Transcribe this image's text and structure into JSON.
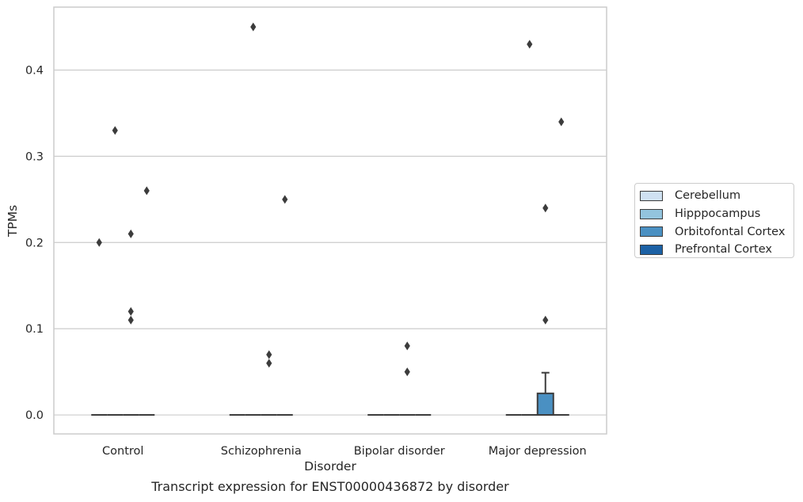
{
  "chart_data": {
    "type": "box",
    "title": "",
    "caption": "Transcript expression for ENST00000436872 by disorder",
    "xlabel": "Disorder",
    "ylabel": "TPMs",
    "categories": [
      "Control",
      "Schizophrenia",
      "Bipolar disorder",
      "Major depression"
    ],
    "ylim": [
      -0.022,
      0.473
    ],
    "yticks": [
      0.0,
      0.1,
      0.2,
      0.3,
      0.4
    ],
    "ytick_labels": [
      "0.0",
      "0.1",
      "0.2",
      "0.3",
      "0.4"
    ],
    "grid": "horizontal",
    "legend_position": "right",
    "series": [
      {
        "name": "Cerebellum",
        "color": "#cfe1f2",
        "boxes": [
          {
            "category": "Control",
            "q1": 0,
            "median": 0,
            "q3": 0,
            "whisker_low": 0,
            "whisker_high": 0,
            "outliers": [
              0.2
            ]
          },
          {
            "category": "Schizophrenia",
            "q1": 0,
            "median": 0,
            "q3": 0,
            "whisker_low": 0,
            "whisker_high": 0,
            "outliers": []
          },
          {
            "category": "Bipolar disorder",
            "q1": 0,
            "median": 0,
            "q3": 0,
            "whisker_low": 0,
            "whisker_high": 0,
            "outliers": []
          },
          {
            "category": "Major depression",
            "q1": 0,
            "median": 0,
            "q3": 0,
            "whisker_low": 0,
            "whisker_high": 0,
            "outliers": []
          }
        ]
      },
      {
        "name": "Hipppocampus",
        "color": "#93c4de",
        "boxes": [
          {
            "category": "Control",
            "q1": 0,
            "median": 0,
            "q3": 0,
            "whisker_low": 0,
            "whisker_high": 0,
            "outliers": [
              0.33
            ]
          },
          {
            "category": "Schizophrenia",
            "q1": 0,
            "median": 0,
            "q3": 0,
            "whisker_low": 0,
            "whisker_high": 0,
            "outliers": [
              0.45
            ]
          },
          {
            "category": "Bipolar disorder",
            "q1": 0,
            "median": 0,
            "q3": 0,
            "whisker_low": 0,
            "whisker_high": 0,
            "outliers": []
          },
          {
            "category": "Major depression",
            "q1": 0,
            "median": 0,
            "q3": 0,
            "whisker_low": 0,
            "whisker_high": 0,
            "outliers": [
              0.43
            ]
          }
        ]
      },
      {
        "name": "Orbitofontal Cortex",
        "color": "#4a90c2",
        "boxes": [
          {
            "category": "Control",
            "q1": 0,
            "median": 0,
            "q3": 0,
            "whisker_low": 0,
            "whisker_high": 0,
            "outliers": [
              0.21,
              0.12,
              0.11
            ]
          },
          {
            "category": "Schizophrenia",
            "q1": 0,
            "median": 0,
            "q3": 0,
            "whisker_low": 0,
            "whisker_high": 0,
            "outliers": [
              0.07,
              0.06
            ]
          },
          {
            "category": "Bipolar disorder",
            "q1": 0,
            "median": 0,
            "q3": 0,
            "whisker_low": 0,
            "whisker_high": 0,
            "outliers": [
              0.08,
              0.05
            ]
          },
          {
            "category": "Major depression",
            "q1": 0,
            "median": 0,
            "q3": 0.025,
            "whisker_low": 0,
            "whisker_high": 0.049,
            "outliers": [
              0.24,
              0.11
            ]
          }
        ]
      },
      {
        "name": "Prefrontal Cortex",
        "color": "#1c61a5",
        "boxes": [
          {
            "category": "Control",
            "q1": 0,
            "median": 0,
            "q3": 0,
            "whisker_low": 0,
            "whisker_high": 0,
            "outliers": [
              0.26
            ]
          },
          {
            "category": "Schizophrenia",
            "q1": 0,
            "median": 0,
            "q3": 0,
            "whisker_low": 0,
            "whisker_high": 0,
            "outliers": [
              0.25
            ]
          },
          {
            "category": "Bipolar disorder",
            "q1": 0,
            "median": 0,
            "q3": 0,
            "whisker_low": 0,
            "whisker_high": 0,
            "outliers": []
          },
          {
            "category": "Major depression",
            "q1": 0,
            "median": 0,
            "q3": 0,
            "whisker_low": 0,
            "whisker_high": 0,
            "outliers": [
              0.34
            ]
          }
        ]
      }
    ]
  }
}
